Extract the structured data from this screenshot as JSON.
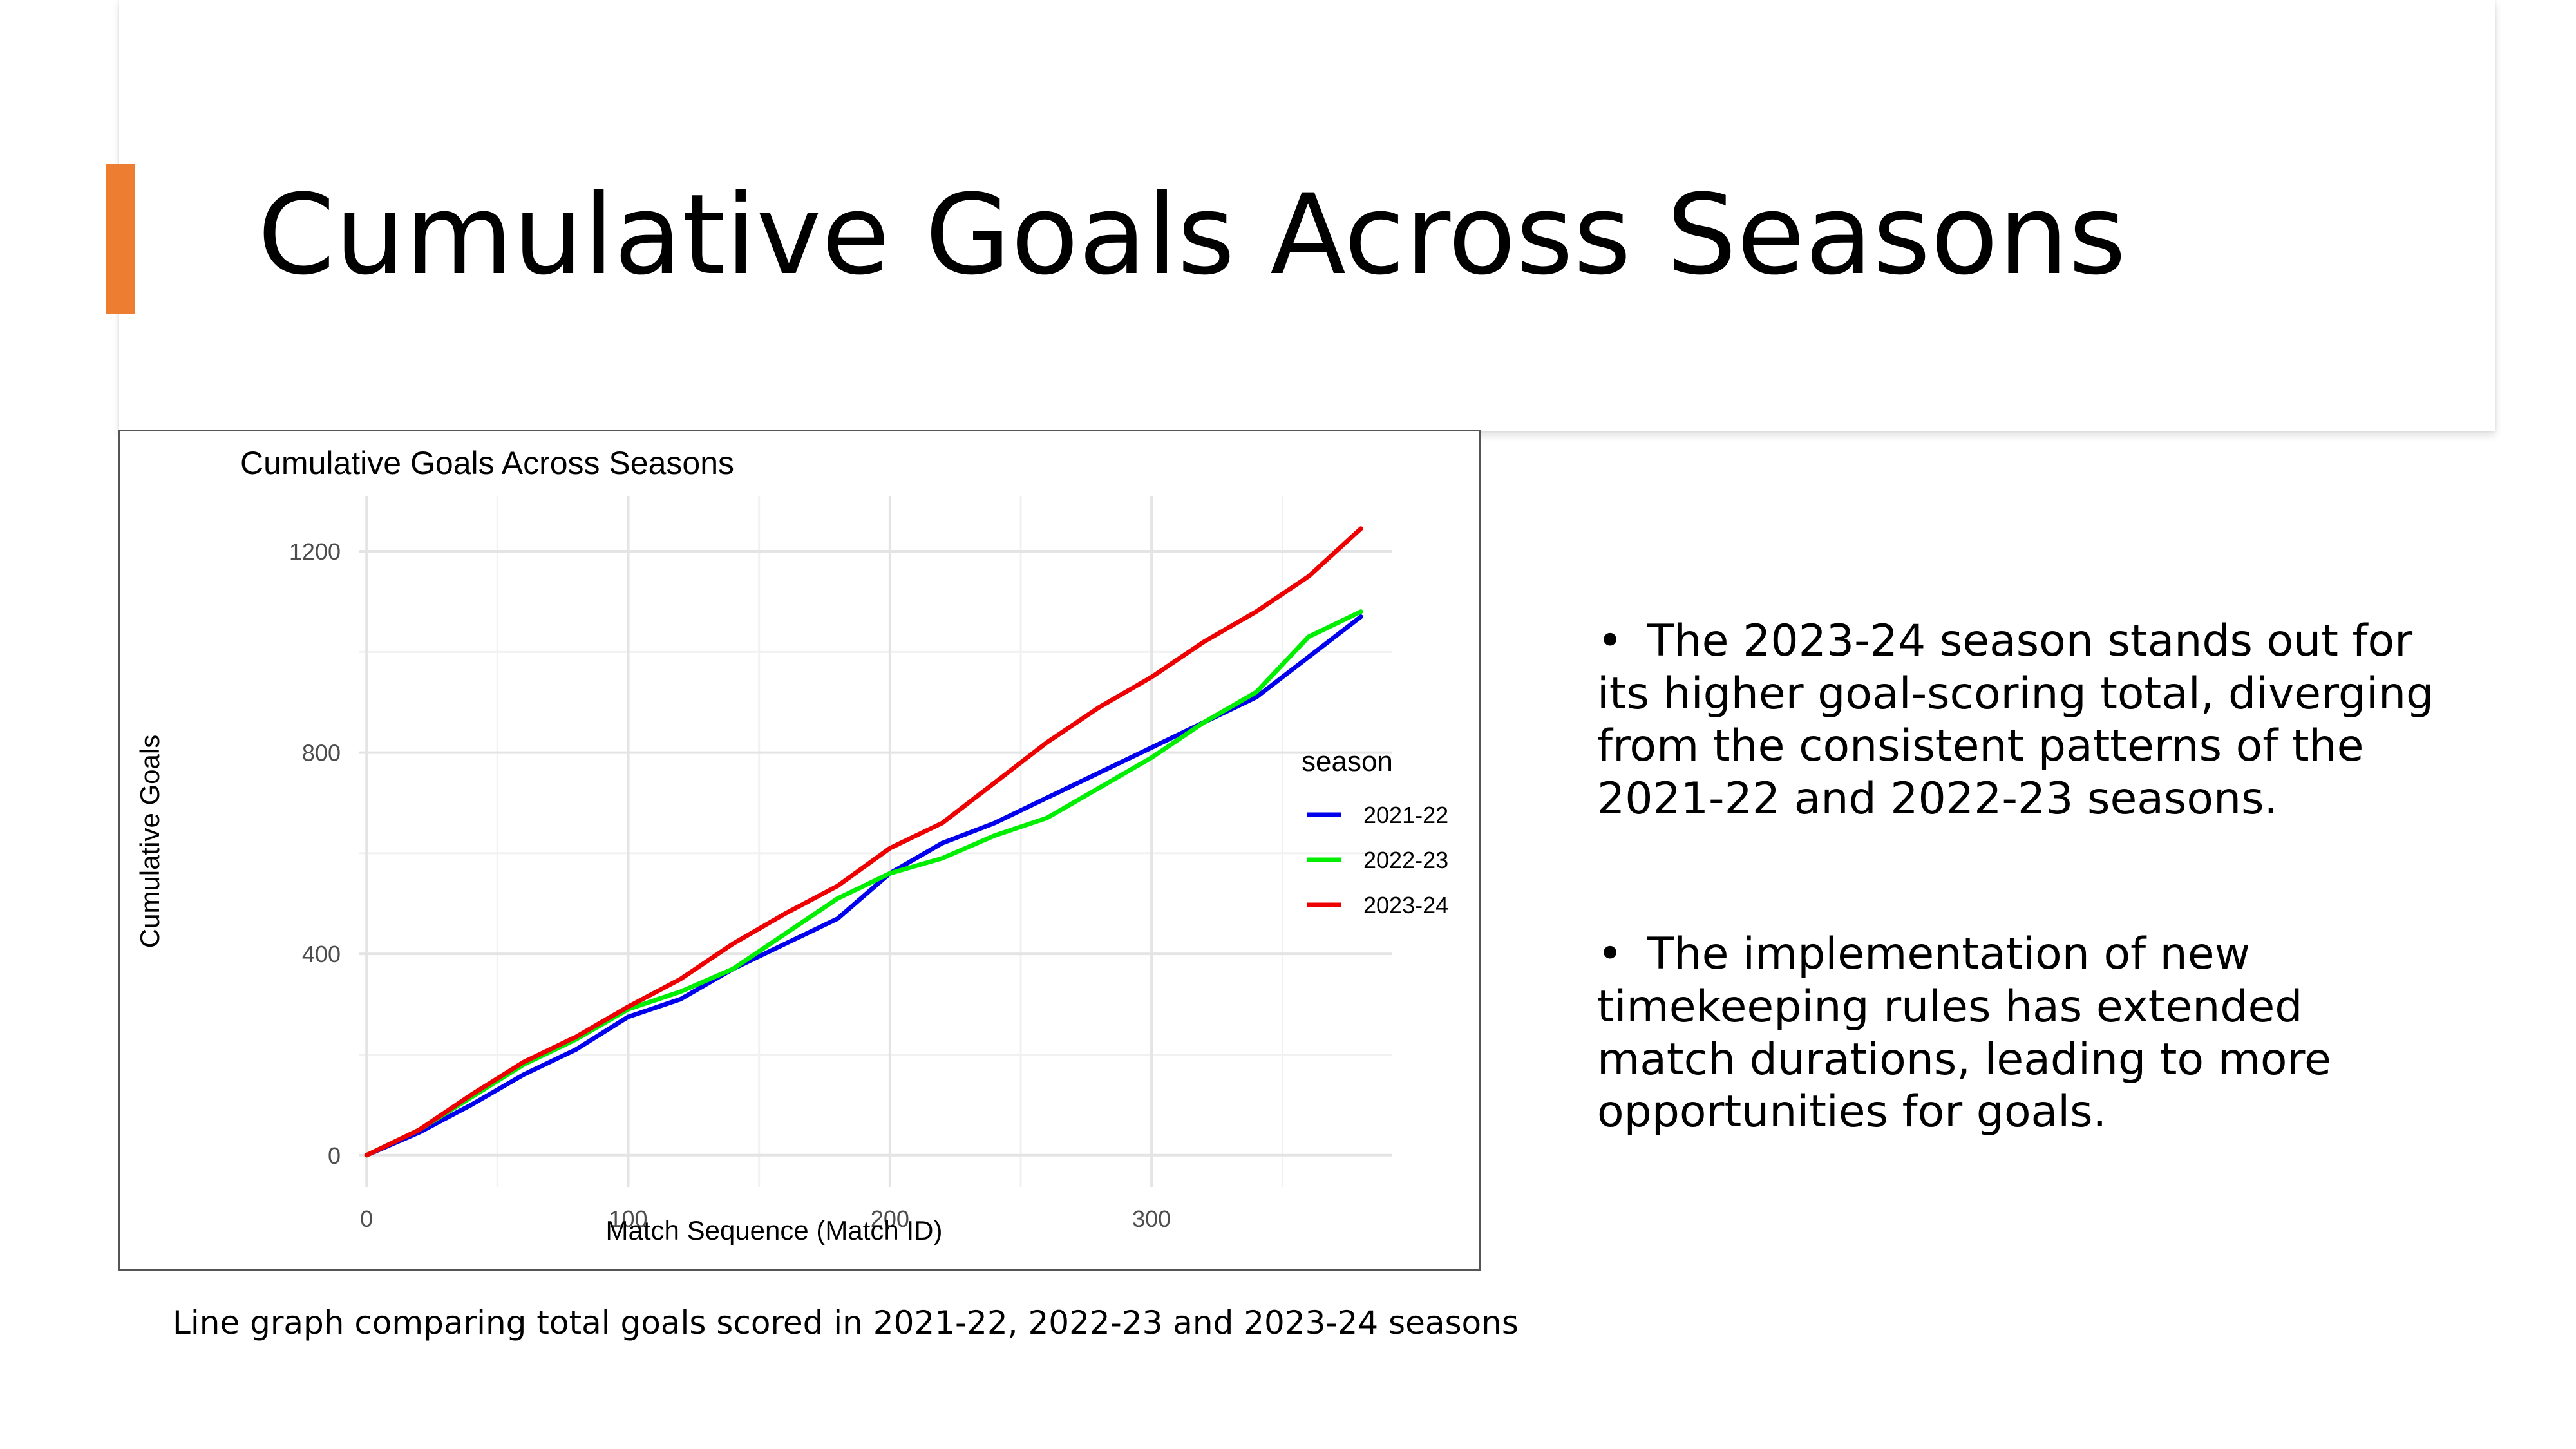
{
  "slide": {
    "title": "Cumulative Goals Across Seasons",
    "accent_color": "#ED7D31"
  },
  "bullets": [
    {
      "text": "The 2023-24 season stands out for its higher goal-scoring total, diverging from the consistent patterns of the 2021-22 and 2022-23 seasons."
    },
    {
      "text": "The implementation of new timekeeping rules has extended match durations, leading to more opportunities for goals."
    }
  ],
  "caption": "Line graph comparing total goals scored in 2021-22, 2022-23 and 2023-24 seasons",
  "chart_data": {
    "type": "line",
    "title": "Cumulative Goals Across Seasons",
    "xlabel": "Match Sequence (Match ID)",
    "ylabel": "Cumulative Goals",
    "xlim": [
      -3,
      392
    ],
    "ylim": [
      -63,
      1310
    ],
    "x_ticks": [
      0,
      100,
      200,
      300
    ],
    "y_ticks": [
      0,
      400,
      800,
      1200
    ],
    "grid": true,
    "legend_title": "season",
    "legend_position": "right",
    "series": [
      {
        "name": "2021-22",
        "color": "#0000EE",
        "points": [
          [
            0,
            0
          ],
          [
            20,
            45
          ],
          [
            40,
            100
          ],
          [
            60,
            160
          ],
          [
            80,
            210
          ],
          [
            100,
            275
          ],
          [
            120,
            310
          ],
          [
            140,
            370
          ],
          [
            160,
            420
          ],
          [
            180,
            470
          ],
          [
            200,
            560
          ],
          [
            220,
            620
          ],
          [
            240,
            660
          ],
          [
            260,
            710
          ],
          [
            280,
            760
          ],
          [
            300,
            810
          ],
          [
            320,
            860
          ],
          [
            340,
            910
          ],
          [
            360,
            990
          ],
          [
            380,
            1070
          ]
        ]
      },
      {
        "name": "2022-23",
        "color": "#00EE00",
        "points": [
          [
            0,
            0
          ],
          [
            20,
            50
          ],
          [
            40,
            115
          ],
          [
            60,
            180
          ],
          [
            80,
            230
          ],
          [
            100,
            290
          ],
          [
            120,
            325
          ],
          [
            140,
            370
          ],
          [
            160,
            440
          ],
          [
            180,
            510
          ],
          [
            200,
            560
          ],
          [
            220,
            590
          ],
          [
            240,
            635
          ],
          [
            260,
            670
          ],
          [
            280,
            730
          ],
          [
            300,
            790
          ],
          [
            320,
            860
          ],
          [
            340,
            920
          ],
          [
            360,
            1030
          ],
          [
            380,
            1080
          ]
        ]
      },
      {
        "name": "2023-24",
        "color": "#EE0000",
        "points": [
          [
            0,
            0
          ],
          [
            20,
            50
          ],
          [
            40,
            120
          ],
          [
            60,
            185
          ],
          [
            80,
            235
          ],
          [
            100,
            295
          ],
          [
            120,
            350
          ],
          [
            140,
            420
          ],
          [
            160,
            480
          ],
          [
            180,
            535
          ],
          [
            200,
            610
          ],
          [
            220,
            660
          ],
          [
            240,
            740
          ],
          [
            260,
            820
          ],
          [
            280,
            890
          ],
          [
            300,
            950
          ],
          [
            320,
            1020
          ],
          [
            340,
            1080
          ],
          [
            360,
            1150
          ],
          [
            380,
            1245
          ]
        ]
      }
    ]
  }
}
